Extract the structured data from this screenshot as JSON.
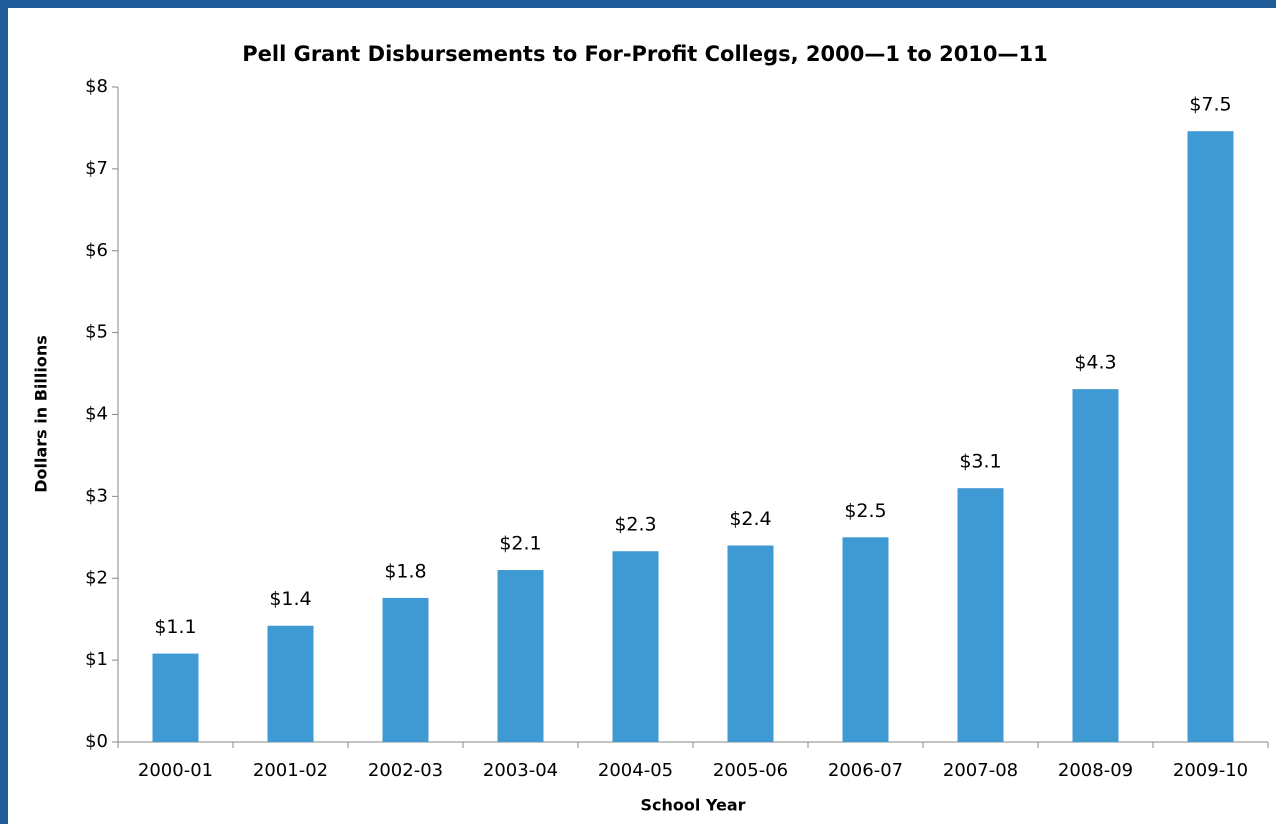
{
  "chart_data": {
    "type": "bar",
    "title": "Pell Grant Disbursements to For-Profit Collegs, 2000—1 to 2010—11",
    "x_label": "School Year",
    "y_label": "Dollars in Billions",
    "categories": [
      "2000-01",
      "2001-02",
      "2002-03",
      "2003-04",
      "2004-05",
      "2005-06",
      "2006-07",
      "2007-08",
      "2008-09",
      "2009-10"
    ],
    "values": [
      1.08,
      1.42,
      1.76,
      2.1,
      2.33,
      2.4,
      2.5,
      3.1,
      4.31,
      7.46
    ],
    "value_labels": [
      "$1.1",
      "$1.4",
      "$1.8",
      "$2.1",
      "$2.3",
      "$2.4",
      "$2.5",
      "$3.1",
      "$4.3",
      "$7.5"
    ],
    "color": "#3f9ad3",
    "ylim": [
      0,
      8
    ],
    "yticks": [
      {
        "value": 0,
        "label": "$0"
      },
      {
        "value": 1,
        "label": "$1"
      },
      {
        "value": 2,
        "label": "$2"
      },
      {
        "value": 3,
        "label": "$3"
      },
      {
        "value": 4,
        "label": "$4"
      },
      {
        "value": 5,
        "label": "$5"
      },
      {
        "value": 6,
        "label": "$6"
      },
      {
        "value": 7,
        "label": "$7"
      },
      {
        "value": 8,
        "label": "$8"
      }
    ],
    "grid": false
  }
}
